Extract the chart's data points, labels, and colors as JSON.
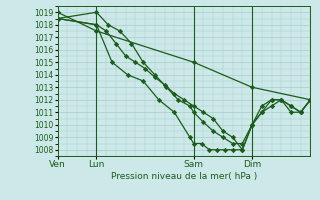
{
  "xlabel": "Pression niveau de la mer( hPa )",
  "ylim": [
    1007.5,
    1019.5
  ],
  "yticks": [
    1008,
    1009,
    1010,
    1011,
    1012,
    1013,
    1014,
    1015,
    1016,
    1017,
    1018,
    1019
  ],
  "bg_color": "#cce8e8",
  "grid_color": "#aacccc",
  "line_color": "#1a5c1a",
  "xtick_labels": [
    "Ven",
    "Lun",
    "Sam",
    "Dim"
  ],
  "xtick_pos": [
    0,
    20,
    70,
    100
  ],
  "vline_pos": [
    20,
    70,
    100
  ],
  "xlim": [
    0,
    130
  ],
  "series": [
    {
      "x": [
        0,
        20,
        70,
        100,
        130
      ],
      "y": [
        1019,
        1017.5,
        1015,
        1013,
        1012
      ]
    },
    {
      "x": [
        0,
        20,
        25,
        30,
        35,
        40,
        45,
        50,
        55,
        60,
        65,
        70,
        75,
        80,
        85,
        90,
        95,
        100,
        105,
        110,
        115,
        120,
        125,
        130
      ],
      "y": [
        1018.5,
        1018,
        1017.5,
        1016.5,
        1015.5,
        1015,
        1014.5,
        1013.8,
        1013.2,
        1012.5,
        1012,
        1011.5,
        1011,
        1010.5,
        1009.5,
        1009,
        1008,
        1010,
        1011,
        1011.5,
        1012,
        1011.5,
        1011,
        1012
      ]
    },
    {
      "x": [
        0,
        20,
        26,
        32,
        38,
        44,
        50,
        56,
        62,
        68,
        70,
        75,
        80,
        85,
        90,
        95,
        100,
        105,
        110,
        115,
        120,
        125,
        130
      ],
      "y": [
        1018.5,
        1019,
        1018,
        1017.5,
        1016.5,
        1015,
        1014,
        1013,
        1012,
        1011.5,
        1011,
        1010.2,
        1009.5,
        1009,
        1008.5,
        1008.5,
        1010,
        1011,
        1012,
        1012,
        1011.5,
        1011,
        1012
      ]
    },
    {
      "x": [
        0,
        20,
        28,
        36,
        44,
        52,
        60,
        68,
        70,
        74,
        78,
        82,
        86,
        90,
        95,
        100,
        105,
        110,
        115,
        120,
        125,
        130
      ],
      "y": [
        1018.5,
        1018,
        1015,
        1014,
        1013.5,
        1012,
        1011,
        1009,
        1008.5,
        1008.5,
        1008,
        1008,
        1008,
        1008,
        1008,
        1010,
        1011.5,
        1012,
        1012,
        1011,
        1011,
        1012
      ]
    }
  ]
}
